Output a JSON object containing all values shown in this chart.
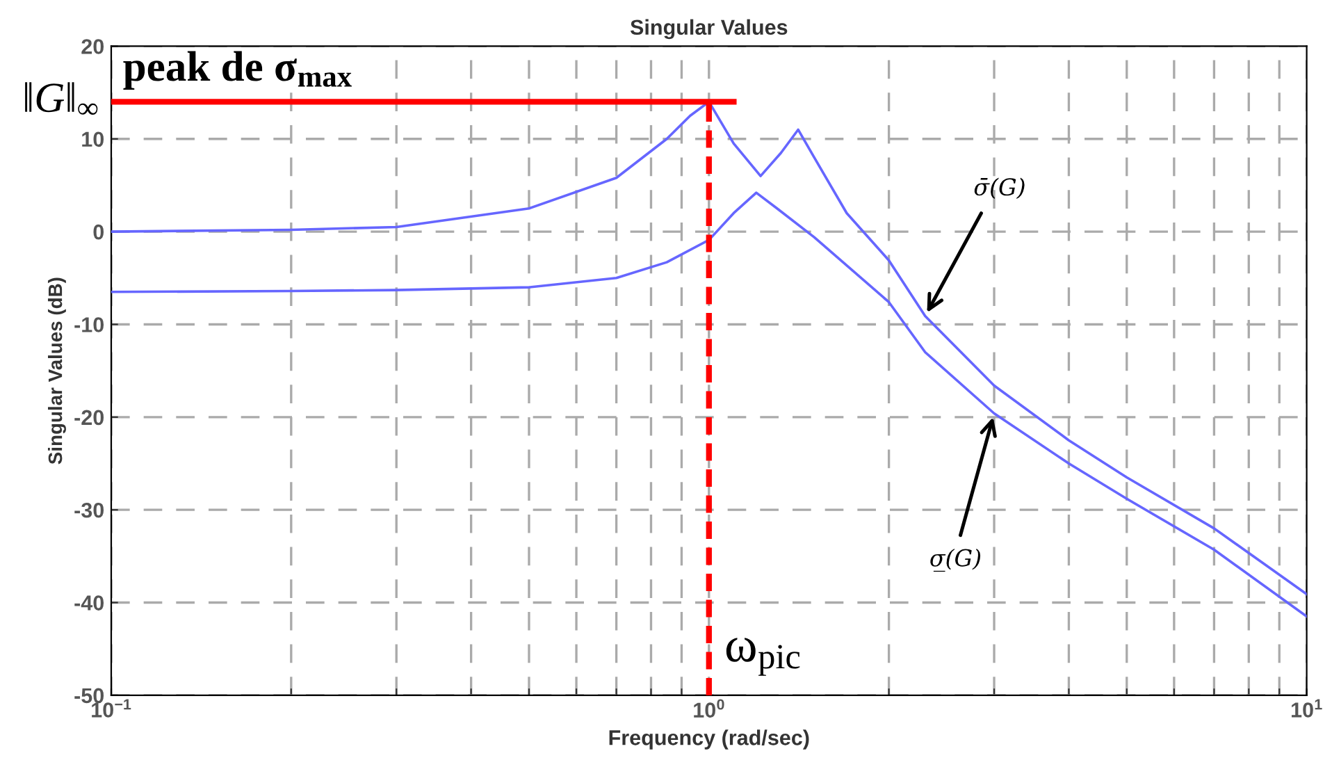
{
  "chart_data": {
    "type": "line",
    "title": "Singular Values",
    "xlabel": "Frequency (rad/sec)",
    "ylabel": "Singular Values (dB)",
    "log": "x",
    "xlim": [
      0.1,
      10
    ],
    "ylim": [
      -50,
      20
    ],
    "xticks": [
      {
        "value": 0.1,
        "label": "10$^{−1}$"
      },
      {
        "value": 0.2,
        "label": null
      },
      {
        "value": 0.3,
        "label": null
      },
      {
        "value": 0.4,
        "label": null
      },
      {
        "value": 0.5,
        "label": null
      },
      {
        "value": 0.6,
        "label": null
      },
      {
        "value": 0.7,
        "label": null
      },
      {
        "value": 0.8,
        "label": null
      },
      {
        "value": 0.9,
        "label": null
      },
      {
        "value": 1,
        "label": "10$^{0}$"
      },
      {
        "value": 2,
        "label": null
      },
      {
        "value": 3,
        "label": null
      },
      {
        "value": 4,
        "label": null
      },
      {
        "value": 5,
        "label": null
      },
      {
        "value": 6,
        "label": null
      },
      {
        "value": 7,
        "label": null
      },
      {
        "value": 8,
        "label": null
      },
      {
        "value": 9,
        "label": null
      },
      {
        "value": 10,
        "label": "10$^{1}$"
      }
    ],
    "yticks": [
      -50,
      -40,
      -30,
      -20,
      -10,
      0,
      10,
      20
    ],
    "grid": true,
    "line_style": "solid",
    "marker": "none",
    "series": [
      {
        "color": "#6666ff",
        "x": [
          0.1,
          0.2,
          0.3,
          0.5,
          0.7,
          0.85,
          0.93,
          1.0,
          1.1,
          1.22,
          1.32,
          1.41,
          1.5,
          1.7,
          2.0,
          2.3,
          3,
          4,
          5,
          7,
          10
        ],
        "values": [
          0,
          0.2,
          0.5,
          2.5,
          5.8,
          10,
          12.5,
          14,
          9.5,
          6,
          8.5,
          11,
          8,
          2,
          -3.1,
          -9.1,
          -16.6,
          -22.5,
          -26.5,
          -32,
          -39.1
        ]
      },
      {
        "color": "#6666ff",
        "x": [
          0.1,
          0.2,
          0.3,
          0.5,
          0.7,
          0.85,
          1.0,
          1.1,
          1.2,
          1.3,
          1.5,
          2.0,
          2.3,
          3,
          4,
          5,
          7,
          10
        ],
        "values": [
          -6.5,
          -6.4,
          -6.3,
          -6,
          -5,
          -3.3,
          -0.9,
          2,
          4.2,
          2.5,
          -0.6,
          -7.6,
          -13,
          -19.6,
          -25,
          -28.8,
          -34.3,
          -41.5
        ]
      },
      {
        "color": "#ff0000",
        "x": [
          0.1,
          1.1
        ],
        "values": [
          14,
          14
        ]
      },
      {
        "color": "#ff0000",
        "x": [
          1,
          1
        ],
        "values": [
          -50,
          14
        ],
        "line_style": "dashed"
      }
    ],
    "annotations": [
      {
        "text": "‖G‖$_{∞}$",
        "x": 0.1,
        "y": 14
      },
      {
        "text": "peak de σ$_{max}$",
        "x": 0.1,
        "y": 14
      },
      {
        "text": "ω$_{pic}$",
        "x": 1,
        "y": -50
      },
      {
        "text": "σ̄(G)",
        "x": 2.3,
        "y": -9.1
      },
      {
        "text": "σ̲(G)",
        "x": 3,
        "y": -19.6
      }
    ]
  }
}
